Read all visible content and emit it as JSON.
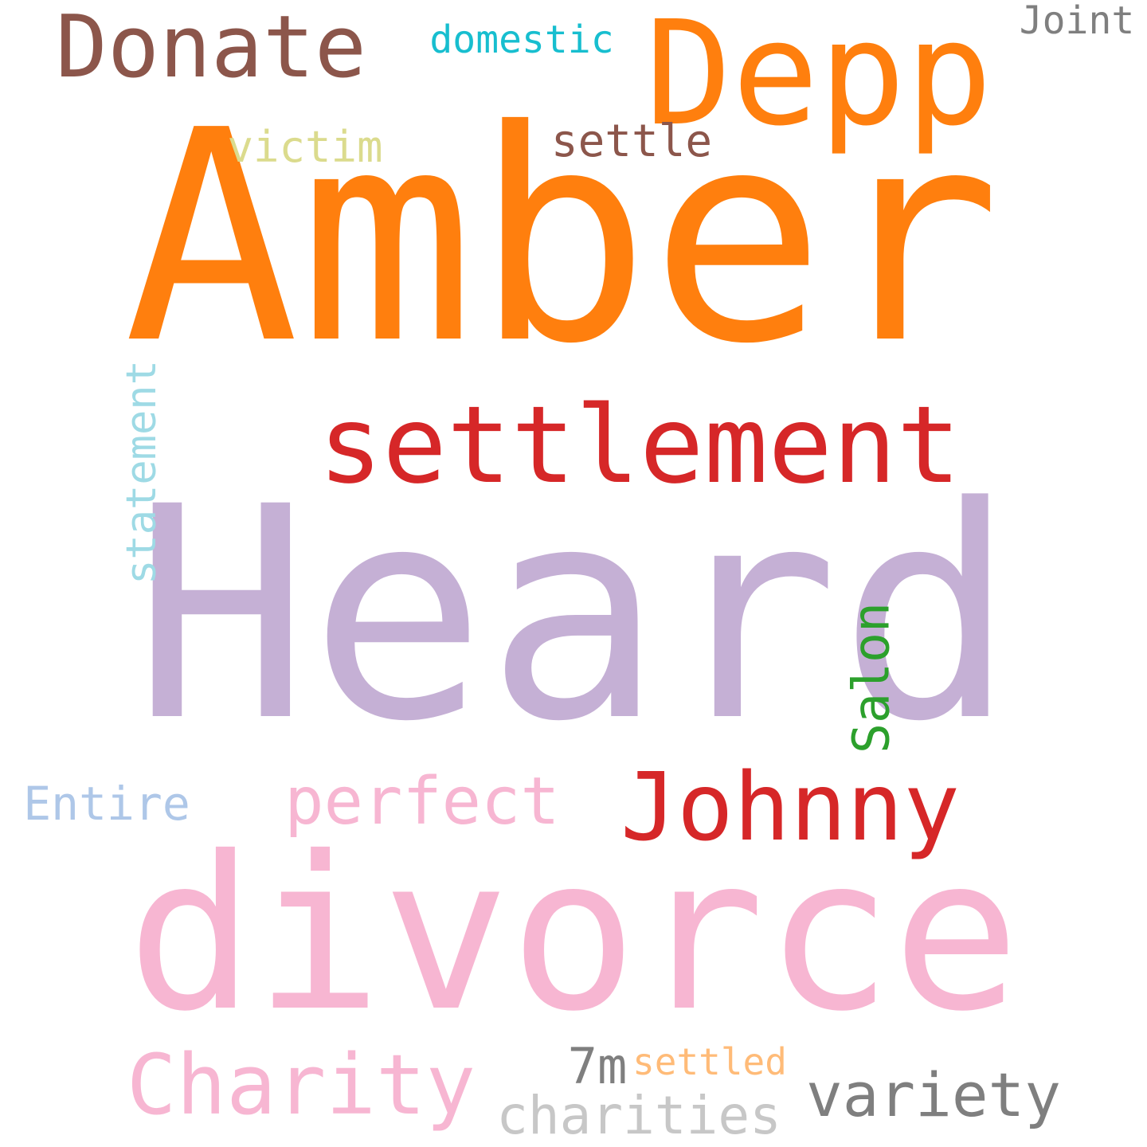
{
  "words": [
    {
      "id": "heard",
      "text": "Heard",
      "color": "#c5b0d5",
      "vertical": false
    },
    {
      "id": "amber",
      "text": "Amber",
      "color": "#ff7f0e",
      "vertical": false
    },
    {
      "id": "divorce",
      "text": "divorce",
      "color": "#f7b6d2",
      "vertical": false
    },
    {
      "id": "settlement",
      "text": "settlement",
      "color": "#d62728",
      "vertical": false
    },
    {
      "id": "depp",
      "text": "Depp",
      "color": "#ff7f0e",
      "vertical": false
    },
    {
      "id": "donate",
      "text": "Donate",
      "color": "#8c564b",
      "vertical": false
    },
    {
      "id": "johnny",
      "text": "Johnny",
      "color": "#d62728",
      "vertical": false
    },
    {
      "id": "charity",
      "text": "Charity",
      "color": "#f7b6d2",
      "vertical": false
    },
    {
      "id": "perfect",
      "text": "perfect",
      "color": "#f7b6d2",
      "vertical": false
    },
    {
      "id": "statement",
      "text": "statement",
      "color": "#9edae5",
      "vertical": true
    },
    {
      "id": "variety",
      "text": "variety",
      "color": "#7f7f7f",
      "vertical": false
    },
    {
      "id": "charities",
      "text": "charities",
      "color": "#c7c7c7",
      "vertical": false
    },
    {
      "id": "settle",
      "text": "settle",
      "color": "#8c564b",
      "vertical": false
    },
    {
      "id": "victim",
      "text": "victim",
      "color": "#dbdb8d",
      "vertical": false
    },
    {
      "id": "entire",
      "text": "Entire",
      "color": "#aec7e8",
      "vertical": false
    },
    {
      "id": "domestic",
      "text": "domestic",
      "color": "#17becf",
      "vertical": false
    },
    {
      "id": "salon",
      "text": "Salon",
      "color": "#2ca02c",
      "vertical": true
    },
    {
      "id": "7m",
      "text": "7m",
      "color": "#7f7f7f",
      "vertical": false
    },
    {
      "id": "settled",
      "text": "settled",
      "color": "#ffbb78",
      "vertical": false
    },
    {
      "id": "joint",
      "text": "Joint",
      "color": "#7f7f7f",
      "vertical": false
    }
  ]
}
